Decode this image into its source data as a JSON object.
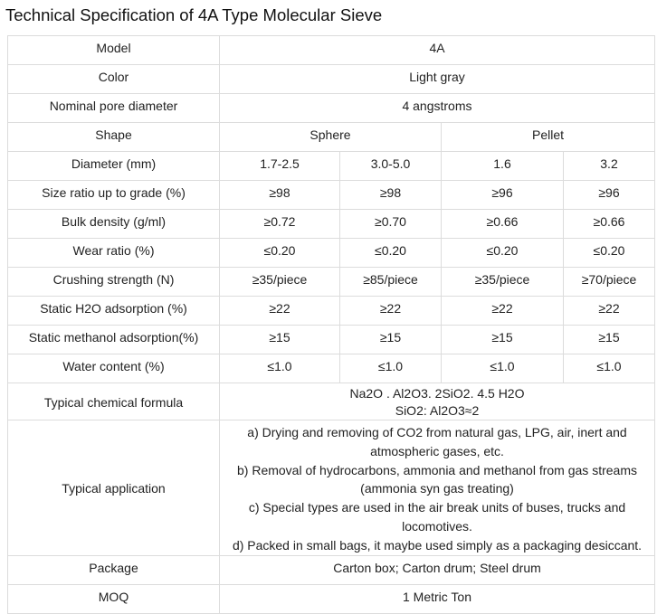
{
  "title": "Technical Specification of 4A Type Molecular Sieve",
  "rows": {
    "model": {
      "label": "Model",
      "value": "4A"
    },
    "color": {
      "label": "Color",
      "value": "Light gray"
    },
    "pore": {
      "label": "Nominal pore diameter",
      "value": "4 angstroms"
    },
    "shape": {
      "label": "Shape",
      "sphere": "Sphere",
      "pellet": "Pellet"
    },
    "diameter": {
      "label": "Diameter (mm)",
      "values": [
        "1.7-2.5",
        "3.0-5.0",
        "1.6",
        "3.2"
      ]
    },
    "size_ratio": {
      "label": "Size ratio up to grade (%)",
      "values": [
        "≥98",
        "≥98",
        "≥96",
        "≥96"
      ]
    },
    "bulk": {
      "label": "Bulk density (g/ml)",
      "values": [
        "≥0.72",
        "≥0.70",
        "≥0.66",
        "≥0.66"
      ]
    },
    "wear": {
      "label": "Wear ratio (%)",
      "values": [
        "≤0.20",
        "≤0.20",
        "≤0.20",
        "≤0.20"
      ]
    },
    "crushing": {
      "label": "Crushing strength (N)",
      "values": [
        "≥35/piece",
        "≥85/piece",
        "≥35/piece",
        "≥70/piece"
      ]
    },
    "h2o": {
      "label": "Static H2O adsorption (%)",
      "values": [
        "≥22",
        "≥22",
        "≥22",
        "≥22"
      ]
    },
    "methanol": {
      "label": "Static methanol adsorption(%)",
      "values": [
        "≥15",
        "≥15",
        "≥15",
        "≥15"
      ]
    },
    "water": {
      "label": "Water content (%)",
      "values": [
        "≤1.0",
        "≤1.0",
        "≤1.0",
        "≤1.0"
      ]
    },
    "chem": {
      "label": "Typical chemical formula",
      "lines": [
        "Na2O . Al2O3. 2SiO2. 4.5 H2O",
        "SiO2: Al2O3≈2"
      ]
    },
    "app": {
      "label": "Typical application",
      "lines": [
        "a) Drying and removing of CO2 from natural gas, LPG, air, inert and",
        "atmospheric gases, etc.",
        "b) Removal of hydrocarbons, ammonia and methanol from gas streams",
        "(ammonia syn gas treating)",
        "c) Special types are used in the air break units of buses, trucks and",
        "locomotives.",
        "d) Packed in small bags, it maybe used simply as a packaging desiccant."
      ]
    },
    "package": {
      "label": "Package",
      "value": "Carton box; Carton drum; Steel drum"
    },
    "moq": {
      "label": "MOQ",
      "value": "1 Metric Ton"
    }
  }
}
